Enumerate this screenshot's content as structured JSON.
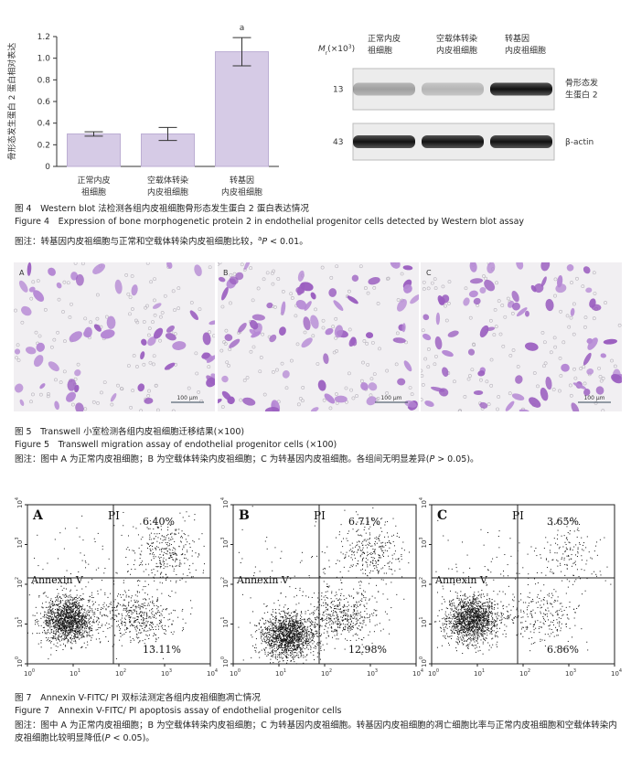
{
  "chart_data": {
    "type": "bar",
    "y_label": "骨形态发生蛋白 2 蛋白相对表达",
    "categories": [
      "正常内皮\n祖细胞",
      "空载体转染\n内皮祖细胞",
      "转基因\n内皮祖细胞"
    ],
    "values": [
      0.3,
      0.3,
      1.06
    ],
    "errors": [
      0.02,
      0.06,
      0.13
    ],
    "color": "#d6cbe6",
    "ylim": [
      0,
      1.2
    ],
    "yticks": [
      0,
      0.2,
      0.4,
      0.6,
      0.8,
      {
        "value": 1,
        "label": "1.0"
      },
      1.2
    ],
    "annotation": "a"
  },
  "western_blot": {
    "mr_label": {
      "symbol": "M",
      "sub": "r",
      "unit": "(×10",
      "exp": "3",
      "close": ")"
    },
    "lanes": [
      "正常内皮\n祖细胞",
      "空载体转染\n内皮祖细胞",
      "转基因\n内皮祖细胞"
    ],
    "bands": [
      {
        "size": "13",
        "label": "骨形态发\n生蛋白 2"
      },
      {
        "size": "43",
        "label": "β-actin"
      }
    ]
  },
  "figure4": {
    "title_cn": "图 4　Western blot 法检测各组内皮祖细胞骨形态发生蛋白 2 蛋白表达情况",
    "title_en": "Figure 4　Expression of bone morphogenetic protein 2 in endothelial progenitor cells detected by Western blot assay",
    "note": [
      "图注：转基因内皮祖细胞与正常和空载体转染内皮祖细胞比较，",
      "a",
      "P",
      " < 0.01。"
    ]
  },
  "figure5": {
    "panels": [
      "A",
      "B",
      "C"
    ],
    "scale_bar": "100 μm",
    "title_cn": "图 5　Transwell 小室检测各组内皮祖细胞迁移结果(×100)",
    "title_en": "Figure 5　Transwell migration assay of endothelial progenitor cells (×100)",
    "note": [
      "图注：图中 A 为正常内皮祖细胞；B 为空载体转染内皮祖细胞；C 为转基因内皮祖细胞。各组间无明显差异(",
      "P",
      " > 0.05)。"
    ]
  },
  "figure7": {
    "panels": [
      {
        "label": "A",
        "upper_right": "6.40%",
        "lower_right": "13.11%"
      },
      {
        "label": "B",
        "upper_right": "6.71%",
        "lower_right": "12.98%"
      },
      {
        "label": "C",
        "upper_right": "3.65%",
        "lower_right": "6.86%"
      }
    ],
    "pi_label": "PI",
    "annexin_label": "Annexin V",
    "tick_base": "10",
    "tick_exponents": [
      "0",
      "1",
      "2",
      "3",
      "4"
    ],
    "title_cn": "图 7　Annexin V-FITC/ PI 双标法测定各组内皮祖细胞凋亡情况",
    "title_en": "Figure 7　Annexin V-FITC/ PI apoptosis assay of endothelial progenitor cells",
    "note": [
      "图注：图中 A 为正常内皮祖细胞；B 为空载体转染内皮祖细胞；C 为转基因内皮祖细胞。转基因内皮祖细胞的凋亡细胞比率与正常内皮祖细胞和空载体转染内皮祖细胞比较明显降低(",
      "P",
      " < 0.05)。"
    ]
  }
}
